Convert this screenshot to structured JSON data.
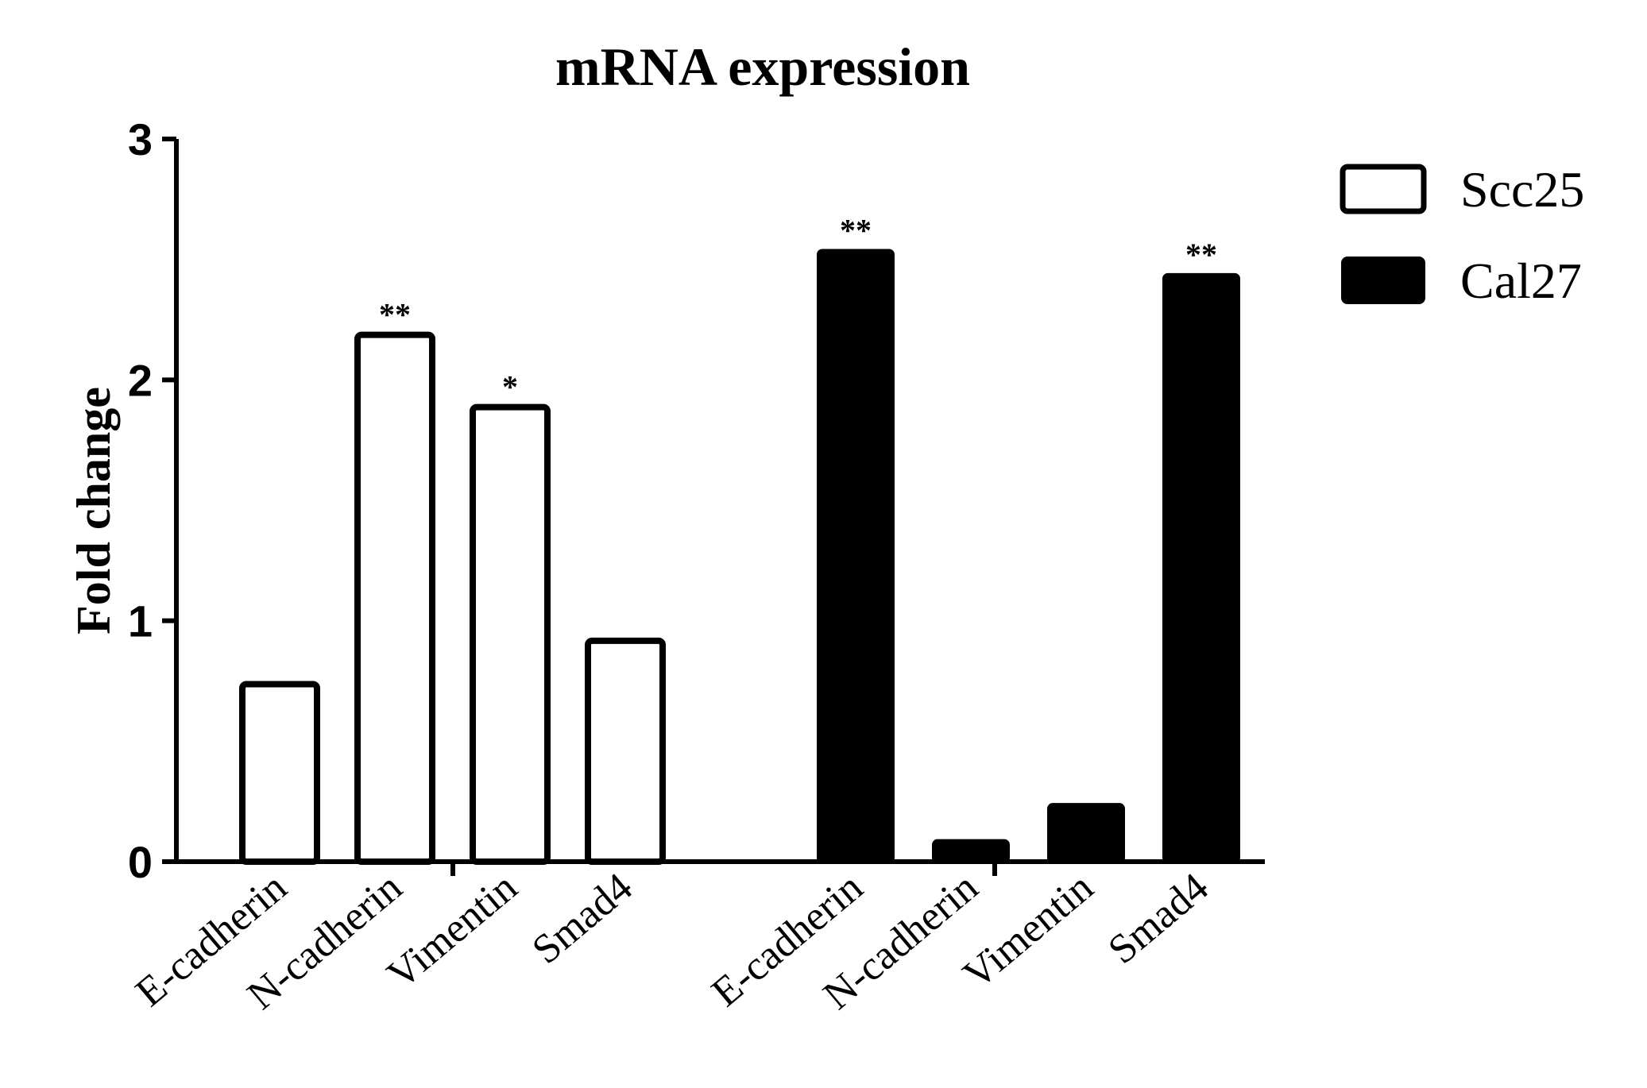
{
  "chart_data": {
    "type": "bar",
    "title": "mRNA expression",
    "ylabel": "Fold change",
    "xlabel": "",
    "ylim": [
      0,
      3
    ],
    "yticks": [
      "0",
      "1",
      "2",
      "3"
    ],
    "legend_position": "top-right",
    "groups": [
      {
        "series": "Scc25",
        "categories": [
          "E-cadherin",
          "N-cadherin",
          "Vimentin",
          "Smad4"
        ],
        "values": [
          0.75,
          2.2,
          1.9,
          0.93
        ],
        "significance": [
          "",
          "**",
          "*",
          ""
        ]
      },
      {
        "series": "Cal27",
        "categories": [
          "E-cadherin",
          "N-cadherin",
          "Vimentin",
          "Smad4"
        ],
        "values": [
          2.55,
          0.1,
          0.25,
          2.45
        ],
        "significance": [
          "**",
          "",
          "",
          "**"
        ]
      }
    ],
    "series": [
      {
        "name": "Scc25",
        "fill": "#ffffff",
        "stroke": "#000000"
      },
      {
        "name": "Cal27",
        "fill": "#000000",
        "stroke": "#000000"
      }
    ],
    "grid": false
  }
}
